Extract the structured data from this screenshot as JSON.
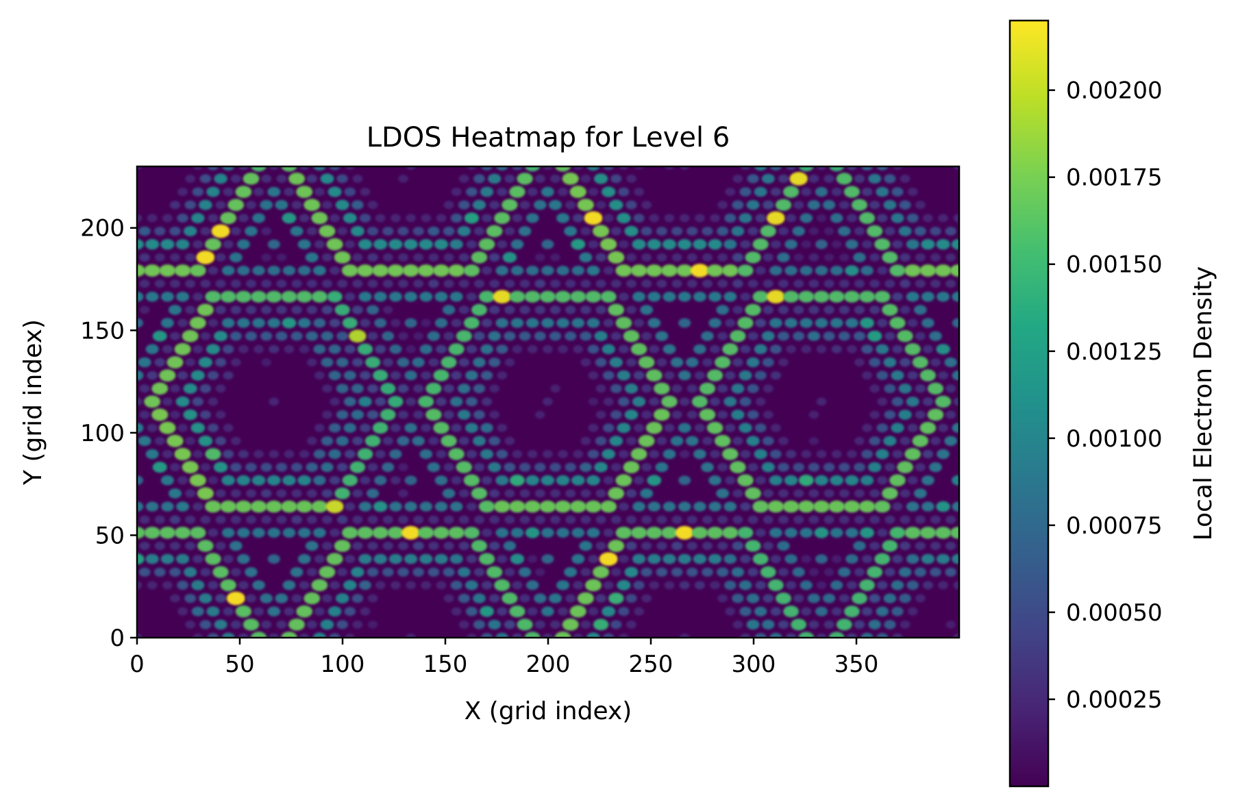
{
  "chart_data": {
    "type": "heatmap",
    "title": "LDOS Heatmap for Level 6",
    "xlabel": "X (grid index)",
    "ylabel": "Y (grid index)",
    "xlim": [
      0,
      400
    ],
    "ylim": [
      0,
      230
    ],
    "x_ticks": [
      0,
      50,
      100,
      150,
      200,
      250,
      300,
      350
    ],
    "x_tick_labels": [
      "0",
      "50",
      "100",
      "150",
      "200",
      "250",
      "300",
      "350"
    ],
    "y_ticks": [
      0,
      50,
      100,
      150,
      200
    ],
    "y_tick_labels": [
      "0",
      "50",
      "100",
      "150",
      "200"
    ],
    "colormap": "viridis",
    "colorbar": {
      "label": "Local Electron Density",
      "range": [
        0.0,
        0.0022
      ],
      "ticks": [
        0.00025,
        0.0005,
        0.00075,
        0.001,
        0.00125,
        0.0015,
        0.00175,
        0.002
      ],
      "tick_labels": [
        "0.00025",
        "0.00050",
        "0.00075",
        "0.00100",
        "0.00125",
        "0.00150",
        "0.00175",
        "0.00200"
      ]
    },
    "pattern": {
      "description_values": {
        "hexagon_centers": [
          [
            66,
            115
          ],
          [
            200,
            115
          ],
          [
            333,
            115
          ],
          [
            133,
            0
          ],
          [
            266,
            0
          ],
          [
            0,
            0
          ],
          [
            400,
            0
          ],
          [
            133,
            230
          ],
          [
            266,
            230
          ],
          [
            0,
            230
          ],
          [
            400,
            230
          ]
        ],
        "background_density": 5e-05,
        "peak_density": 0.0022
      }
    },
    "grid": false
  }
}
